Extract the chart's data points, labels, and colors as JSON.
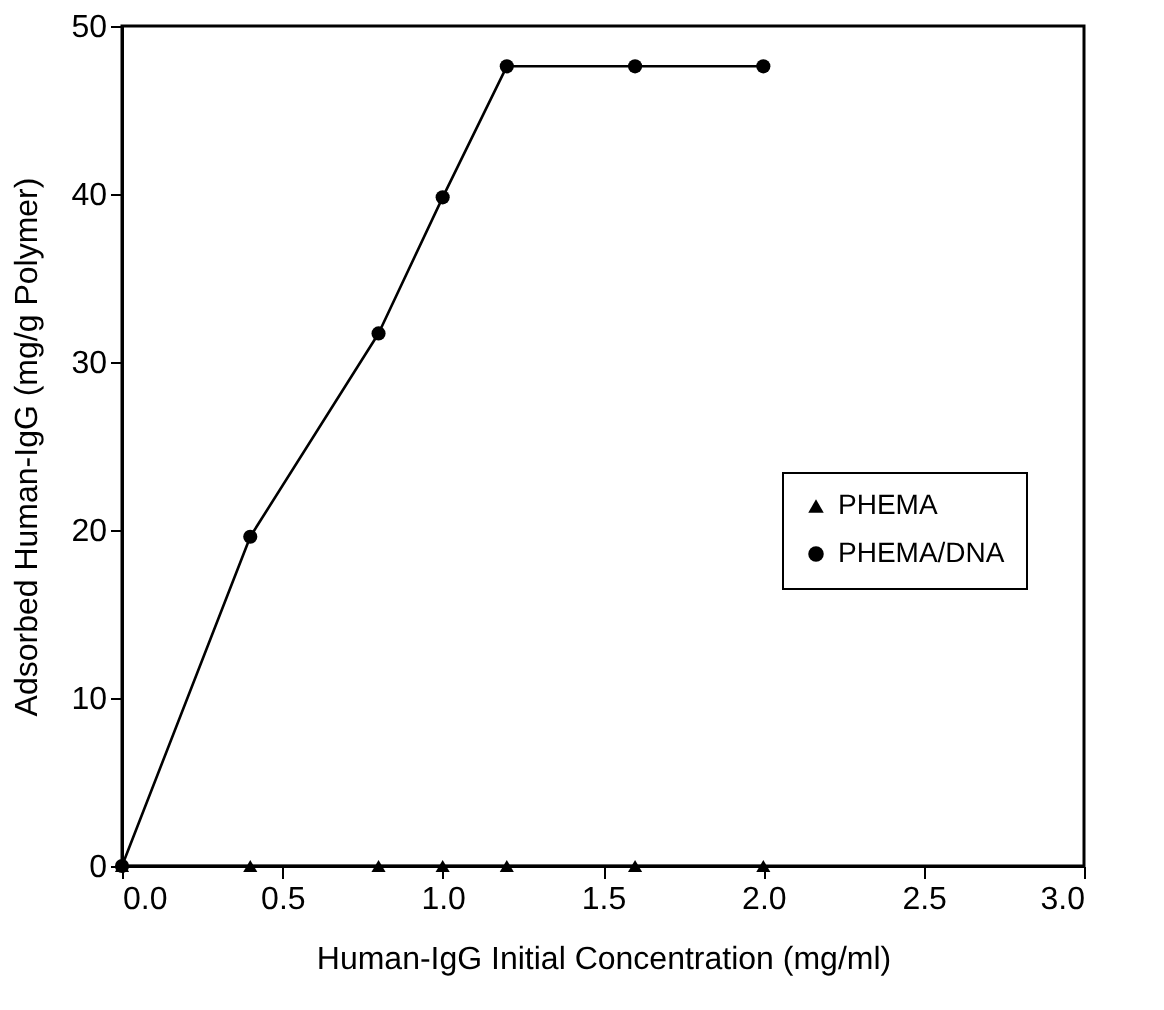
{
  "chart_data": {
    "type": "line",
    "xlabel": "Human-IgG Initial Concentration (mg/ml)",
    "ylabel": "Adsorbed Human-IgG (mg/g Polymer)",
    "xlim": [
      0,
      3
    ],
    "xticks": [
      {
        "value": 0,
        "label": "0.0"
      },
      {
        "value": 0.5,
        "label": "0.5"
      },
      {
        "value": 1,
        "label": "1.0"
      },
      {
        "value": 1.5,
        "label": "1.5"
      },
      {
        "value": 2,
        "label": "2.0"
      },
      {
        "value": 2.5,
        "label": "2.5"
      },
      {
        "value": 3,
        "label": "3.0"
      }
    ],
    "ylim": [
      0,
      50
    ],
    "yticks": [
      0,
      10,
      20,
      30,
      40,
      50
    ],
    "grid": false,
    "legend": "right",
    "line_style": "solid",
    "series": [
      {
        "name": "PHEMA",
        "color": "#000000",
        "marker": "triangle",
        "x": [
          0,
          0.4,
          0.8,
          1.0,
          1.2,
          1.6,
          2.0
        ],
        "values": [
          0,
          0,
          0,
          0,
          0,
          0,
          0
        ]
      },
      {
        "name": "PHEMA/DNA",
        "color": "#000000",
        "marker": "circle",
        "x": [
          0,
          0.4,
          0.8,
          1.0,
          1.2,
          1.6,
          2.0
        ],
        "values": [
          0,
          19.6,
          31.7,
          39.8,
          47.6,
          47.6,
          47.6
        ]
      }
    ]
  }
}
